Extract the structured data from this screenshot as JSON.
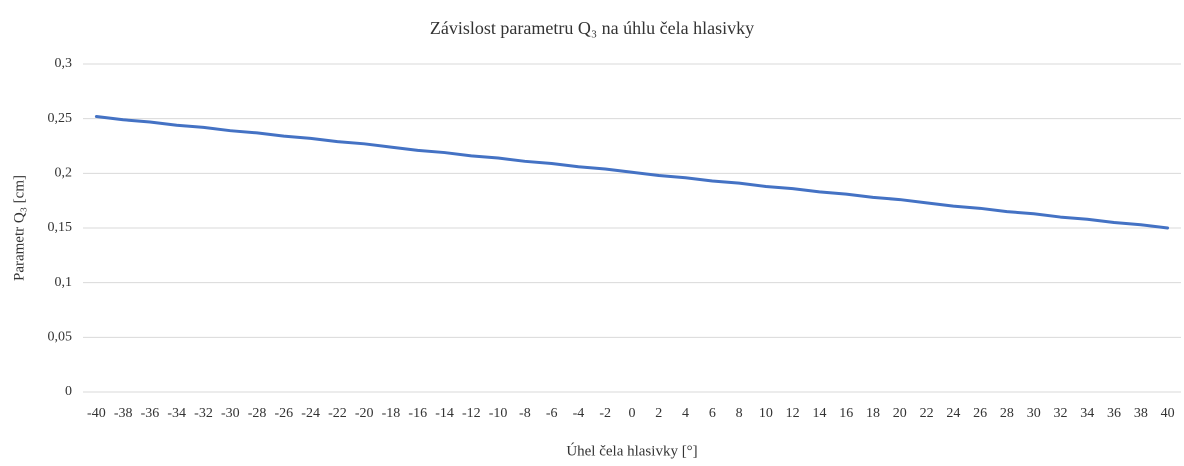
{
  "chart_data": {
    "type": "line",
    "title": "Závislost parametru Q₃ na úhlu čela hlasivky",
    "x_label": "Úhel čela hlasivky [°]",
    "y_label": "Parametr Q₃ [cm]",
    "categories": [
      "-40",
      "-38",
      "-36",
      "-34",
      "-32",
      "-30",
      "-28",
      "-26",
      "-24",
      "-22",
      "-20",
      "-18",
      "-16",
      "-14",
      "-12",
      "-10",
      "-8",
      "-6",
      "-4",
      "-2",
      "0",
      "2",
      "4",
      "6",
      "8",
      "10",
      "12",
      "14",
      "16",
      "18",
      "20",
      "22",
      "24",
      "26",
      "28",
      "30",
      "32",
      "34",
      "36",
      "38",
      "40"
    ],
    "series": [
      {
        "name": "Q₃",
        "color": "#4472c4",
        "values": [
          0.252,
          0.249,
          0.247,
          0.244,
          0.242,
          0.239,
          0.237,
          0.234,
          0.232,
          0.229,
          0.227,
          0.224,
          0.221,
          0.219,
          0.216,
          0.214,
          0.211,
          0.209,
          0.206,
          0.204,
          0.201,
          0.198,
          0.196,
          0.193,
          0.191,
          0.188,
          0.186,
          0.183,
          0.181,
          0.178,
          0.176,
          0.173,
          0.17,
          0.168,
          0.165,
          0.163,
          0.16,
          0.158,
          0.155,
          0.153,
          0.15
        ]
      }
    ],
    "ylim": [
      0,
      0.3
    ],
    "yticks": [
      0,
      {
        "value": 0.05,
        "label": "0,05"
      },
      {
        "value": 0.1,
        "label": "0,1"
      },
      {
        "value": 0.15,
        "label": "0,15"
      },
      {
        "value": 0.2,
        "label": "0,2"
      },
      {
        "value": 0.25,
        "label": "0,25"
      },
      {
        "value": 0.3,
        "label": "0,3"
      }
    ],
    "grid": true
  }
}
